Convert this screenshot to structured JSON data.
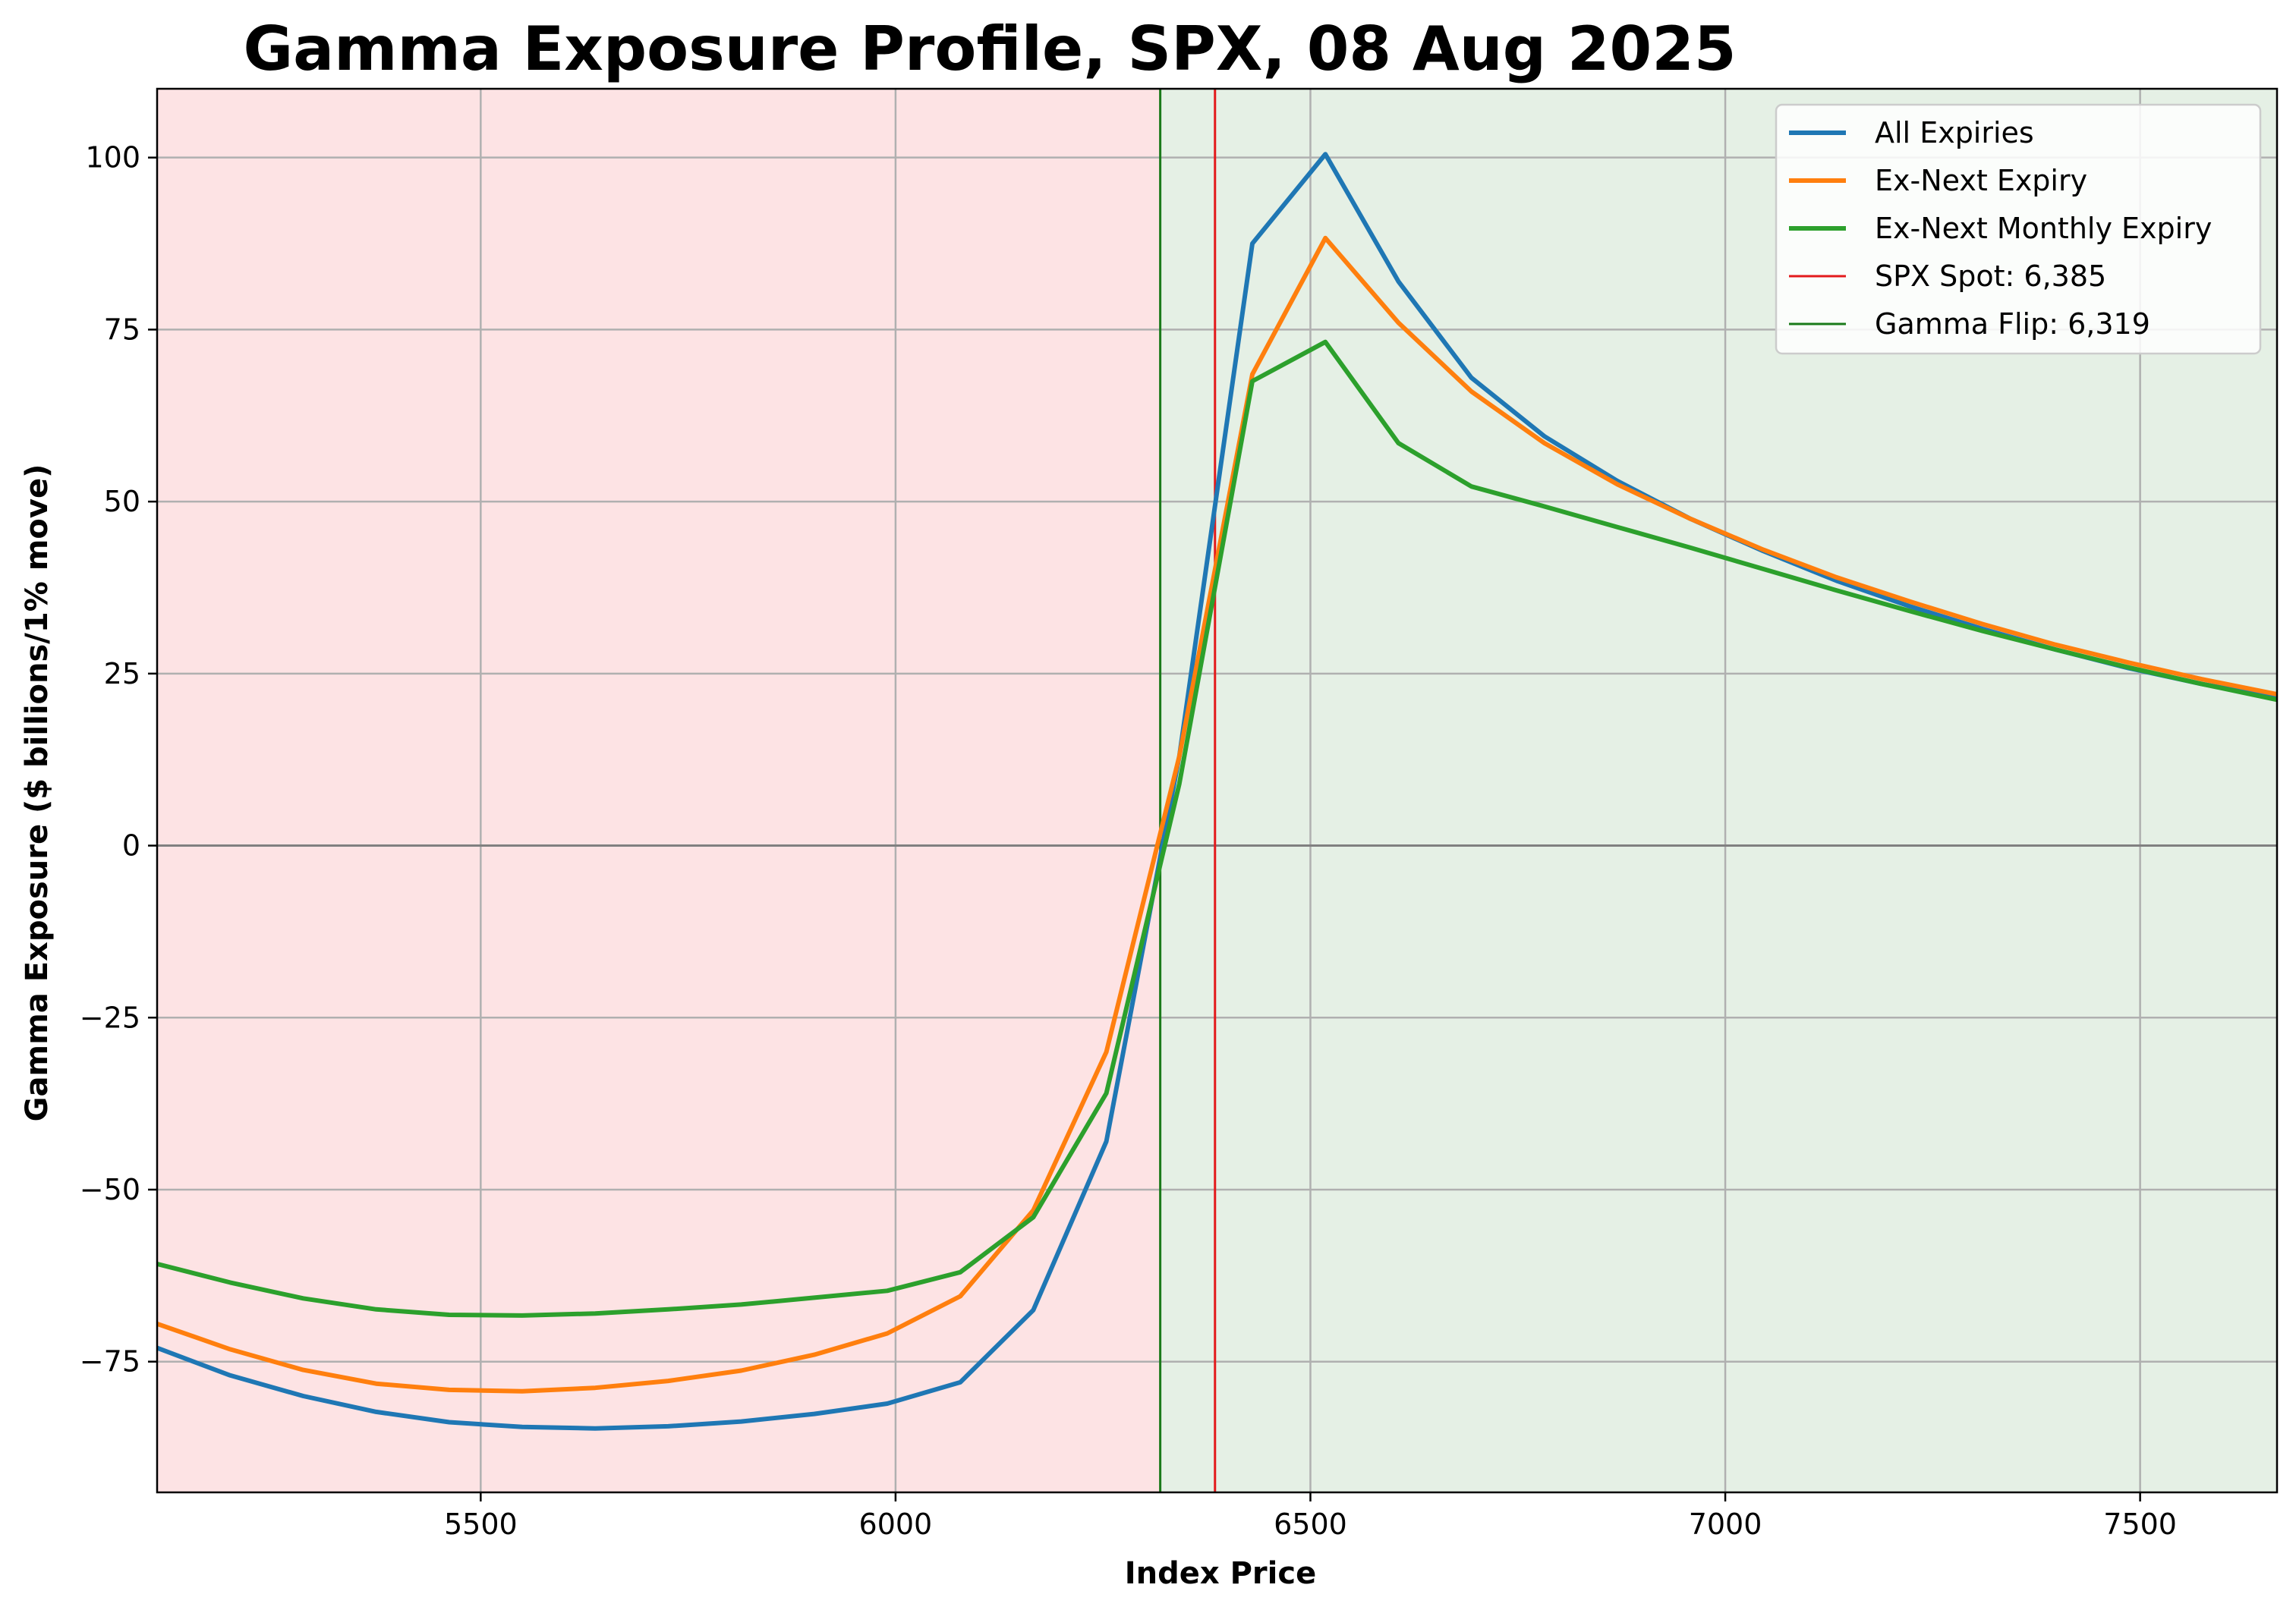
{
  "colors": {
    "negative_region": "#fde3e4",
    "positive_region": "#e5f0e5",
    "grid": "#b0b0b0",
    "zero_line": "#808080",
    "spot_line": "#e31a1c",
    "flip_line": "#1a7a1a"
  },
  "chart_data": {
    "type": "line",
    "title": "Gamma Exposure Profile, SPX, 08 Aug 2025",
    "xlabel": "Index Price",
    "ylabel": "Gamma Exposure ($ billions/1% move)",
    "xlim": [
      5110,
      7665
    ],
    "ylim": [
      -94,
      110
    ],
    "x_ticks": [
      5500,
      6000,
      6500,
      7000,
      7500
    ],
    "y_ticks": [
      -75,
      -50,
      -25,
      0,
      25,
      50,
      75,
      100
    ],
    "x_tick_labels": [
      "5500",
      "6000",
      "6500",
      "7000",
      "7500"
    ],
    "y_tick_labels": [
      "−75",
      "−50",
      "−25",
      "0",
      "25",
      "50",
      "75",
      "100"
    ],
    "grid": true,
    "legend_position": "top-right",
    "shading": [
      {
        "from": 5110,
        "to": 6319,
        "color_key": "negative_region"
      },
      {
        "from": 6319,
        "to": 7665,
        "color_key": "positive_region"
      }
    ],
    "x": [
      5110,
      5198,
      5286,
      5374,
      5462,
      5550,
      5638,
      5726,
      5814,
      5902,
      5990,
      6078,
      6166,
      6254,
      6342,
      6430,
      6518,
      6606,
      6694,
      6782,
      6870,
      6958,
      7046,
      7134,
      7222,
      7310,
      7398,
      7486,
      7574,
      7665
    ],
    "series": [
      {
        "name": "All Expiries",
        "color": "#1f77b4",
        "values": [
          -73,
          -77,
          -80,
          -82.3,
          -83.8,
          -84.5,
          -84.7,
          -84.4,
          -83.7,
          -82.6,
          -81.1,
          -78,
          -67.5,
          -43,
          13,
          87.5,
          100.5,
          82,
          68,
          59.5,
          53,
          47.5,
          42.8,
          38.5,
          34.8,
          31.5,
          28.5,
          25.8,
          23.5,
          21.5
        ]
      },
      {
        "name": "Ex-Next Expiry",
        "color": "#ff7f0e",
        "values": [
          -69.5,
          -73.2,
          -76.2,
          -78.2,
          -79.1,
          -79.3,
          -78.8,
          -77.8,
          -76.3,
          -74,
          -70.9,
          -65.5,
          -53,
          -30,
          13,
          68.5,
          88.3,
          76,
          66,
          58.5,
          52.5,
          47.5,
          43,
          39,
          35.5,
          32.2,
          29.2,
          26.6,
          24.2,
          22
        ]
      },
      {
        "name": "Ex-Next Monthly Expiry",
        "color": "#2ca02c",
        "values": [
          -60.8,
          -63.5,
          -65.8,
          -67.4,
          -68.2,
          -68.3,
          -68,
          -67.4,
          -66.7,
          -65.7,
          -64.7,
          -62,
          -54,
          -36,
          9,
          67.5,
          73.2,
          58.5,
          52.2,
          49.3,
          46.3,
          43.3,
          40.2,
          37.1,
          34.1,
          31.2,
          28.5,
          25.9,
          23.5,
          21.2
        ]
      }
    ],
    "vertical_lines": [
      {
        "name": "SPX Spot: 6,385",
        "x": 6385,
        "color_key": "spot_line"
      },
      {
        "name": "Gamma Flip: 6,319",
        "x": 6319,
        "color_key": "flip_line"
      }
    ]
  }
}
